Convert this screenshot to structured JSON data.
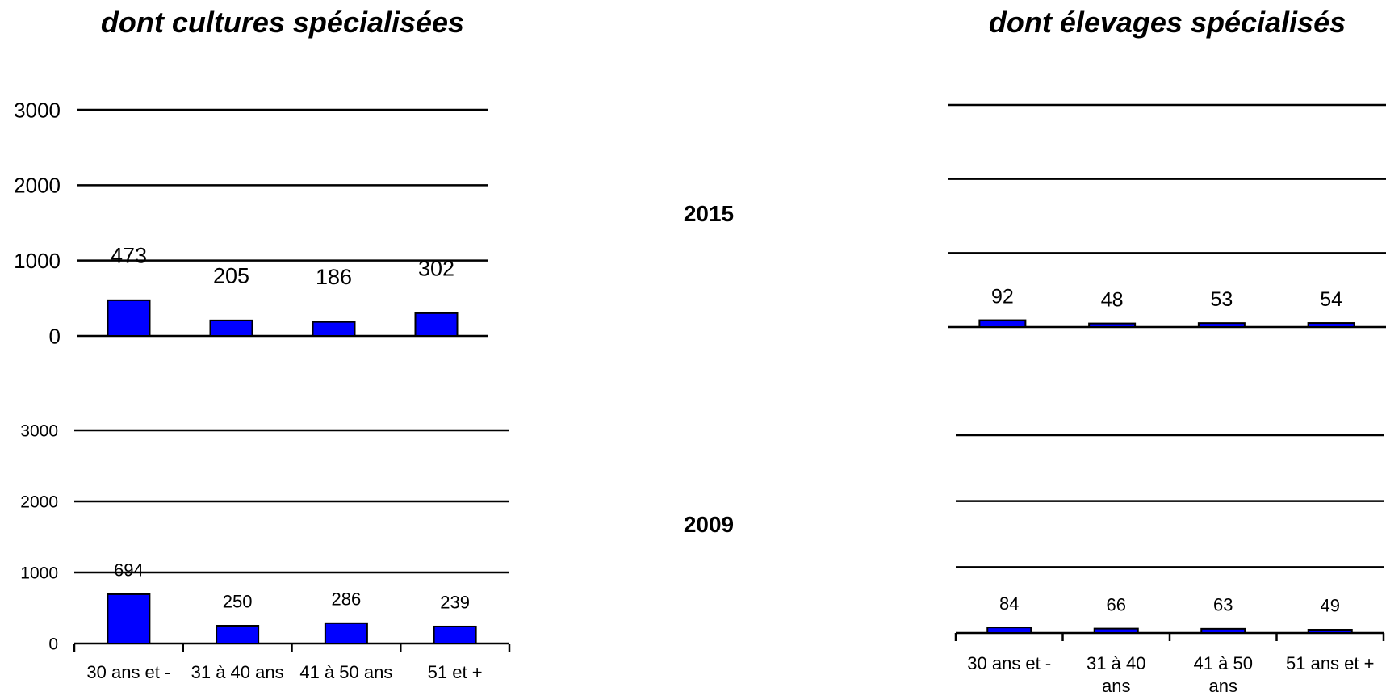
{
  "titles": {
    "left": "dont cultures spécialisées",
    "right": "dont élevages spécialisés"
  },
  "years": {
    "top": "2015",
    "bottom": "2009"
  },
  "colors": {
    "bar": "#0000ff",
    "line": "#000000"
  },
  "chart_data": [
    {
      "type": "bar",
      "name": "cultures-2015",
      "categories": [
        "30 ans et -",
        "31 à 40 ans",
        "41 à 50 ans",
        "51 et +"
      ],
      "values": [
        473,
        205,
        186,
        302
      ],
      "ylim": [
        0,
        3000
      ],
      "yticks": [
        0,
        1000,
        2000,
        3000
      ],
      "grid": true
    },
    {
      "type": "bar",
      "name": "cultures-2009",
      "categories": [
        "30 ans et -",
        "31 à 40 ans",
        "41 à 50 ans",
        "51 et +"
      ],
      "category_labels": [
        "30 ans et -",
        "31 à 40 ans",
        "41 à 50 ans",
        "51 et +"
      ],
      "values": [
        694,
        250,
        286,
        239
      ],
      "ylim": [
        0,
        3000
      ],
      "yticks": [
        0,
        1000,
        2000,
        3000
      ],
      "grid": true
    },
    {
      "type": "bar",
      "name": "elevages-2015",
      "categories": [
        "30 ans et -",
        "31 à 40 ans",
        "41 à 50 ans",
        "51 ans et +"
      ],
      "values": [
        92,
        48,
        53,
        54
      ],
      "ylim": [
        0,
        3000
      ],
      "grid": true
    },
    {
      "type": "bar",
      "name": "elevages-2009",
      "categories": [
        "30 ans et -",
        "31 à 40 ans",
        "41 à 50 ans",
        "51 ans et +"
      ],
      "category_labels": [
        "30 ans et -",
        "31 à 40\nans",
        "41 à 50\nans",
        "51 ans et +"
      ],
      "values": [
        84,
        66,
        63,
        49
      ],
      "ylim": [
        0,
        3000
      ],
      "grid": true
    }
  ]
}
